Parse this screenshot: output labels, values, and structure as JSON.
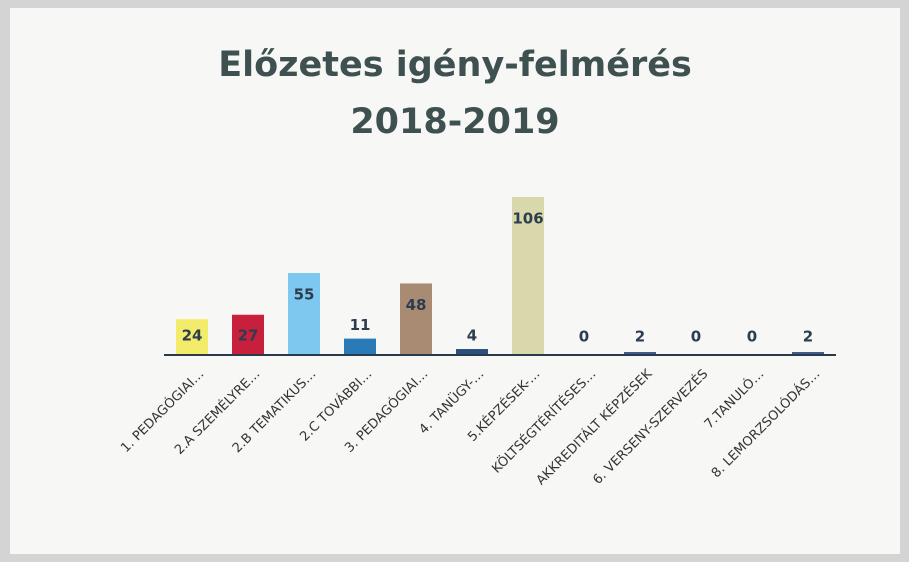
{
  "chart_data": {
    "type": "bar",
    "title": [
      "Előzetes igény-felmérés",
      "2018-2019"
    ],
    "categories": [
      "1. PEDAGÓGIAI…",
      "2.A SZEMÉLYRE…",
      "2.B TEMATIKUS…",
      "2.C TOVÁBBI…",
      "3. PEDAGÓGIAI…",
      "4. TANÜGY-…",
      "5.KÉPZÉSEK-…",
      "KÖLTSÉGTÉRÍTÉSES…",
      "AKKREDITÁLT KÉPZÉSEK",
      "6. VERSENY-SZERVEZÉS",
      "7.TANULÓ…",
      "8. LEMORZSOLÓDÁS…"
    ],
    "values": [
      24,
      27,
      55,
      11,
      48,
      4,
      106,
      0,
      2,
      0,
      0,
      2
    ],
    "colors": [
      "#f2ec6a",
      "#c8203c",
      "#7cc8ee",
      "#2a7ab8",
      "#a98b74",
      "#2b4f7e",
      "#d9d8aa",
      "#3b5a86",
      "#3b5a86",
      "#3b5a86",
      "#3b5a86",
      "#3b5a86"
    ],
    "ylim": [
      0,
      110
    ]
  }
}
